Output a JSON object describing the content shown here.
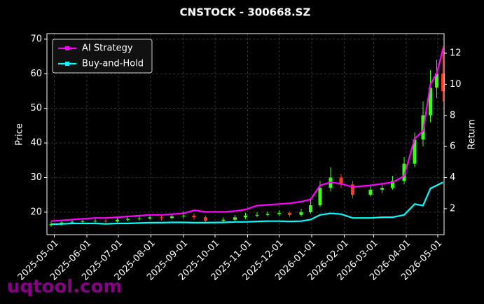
{
  "chart_data": {
    "type": "candlestick",
    "title": "CNSTOCK - 300668.SZ",
    "x": [
      "2025-04-28",
      "2025-05-08",
      "2025-05-18",
      "2025-05-28",
      "2025-06-09",
      "2025-06-19",
      "2025-06-30",
      "2025-07-10",
      "2025-07-21",
      "2025-07-31",
      "2025-08-11",
      "2025-08-21",
      "2025-09-01",
      "2025-09-11",
      "2025-09-22",
      "2025-10-09",
      "2025-10-20",
      "2025-10-30",
      "2025-11-10",
      "2025-11-20",
      "2025-12-01",
      "2025-12-11",
      "2025-12-22",
      "2025-12-31",
      "2026-01-09",
      "2026-01-19",
      "2026-01-29",
      "2026-02-09",
      "2026-02-26",
      "2026-03-09",
      "2026-03-19",
      "2026-03-30",
      "2026-04-09",
      "2026-04-17",
      "2026-04-24",
      "2026-04-30",
      "2026-05-06"
    ],
    "open": [
      16.2,
      16.5,
      17,
      17.2,
      17.4,
      17.5,
      17.3,
      17.8,
      18,
      18.2,
      18.5,
      18.3,
      18.8,
      19,
      18.5,
      17.5,
      17.8,
      18.5,
      19,
      19.2,
      19.5,
      19.8,
      19.2,
      20,
      22,
      27,
      30,
      28,
      25,
      26.5,
      27,
      29,
      34,
      41,
      48,
      56,
      60
    ],
    "high": [
      17.2,
      17.6,
      17.8,
      18,
      18.1,
      18,
      18.4,
      18.6,
      18.8,
      19.2,
      19,
      19.5,
      20.2,
      19.6,
      19,
      18.5,
      19.2,
      19.8,
      20,
      20.2,
      20.5,
      20.2,
      21,
      23.5,
      29,
      33,
      31,
      29,
      28,
      28.5,
      30.5,
      36,
      43,
      52,
      61,
      64,
      68
    ],
    "low": [
      15.8,
      16,
      16.5,
      16.8,
      17,
      16.8,
      17,
      17.4,
      17.6,
      17.8,
      17.6,
      18,
      18.2,
      17.8,
      17,
      17,
      17.4,
      18,
      18.5,
      18.8,
      19,
      18.6,
      18.8,
      19.5,
      21.5,
      26,
      27,
      24,
      24.5,
      25.5,
      26.5,
      28,
      33,
      39,
      46,
      53,
      52
    ],
    "close": [
      16.5,
      17,
      17.2,
      17.4,
      17.5,
      17.3,
      17.8,
      18,
      18.2,
      18.5,
      18.3,
      18.8,
      19,
      18.5,
      17.5,
      17.8,
      18.5,
      19,
      19.2,
      19.5,
      19.8,
      19.2,
      20,
      22,
      27,
      30,
      28,
      25,
      26.5,
      27,
      29,
      34,
      41,
      48,
      56,
      60,
      55
    ],
    "up_color": "#39ff14",
    "down_color": "#ff3b1f",
    "series": [
      {
        "name": "AI Strategy",
        "color": "#ff00ff",
        "axis": "y2",
        "values": [
          1.2,
          1.25,
          1.3,
          1.35,
          1.4,
          1.4,
          1.45,
          1.5,
          1.55,
          1.6,
          1.6,
          1.65,
          1.7,
          1.9,
          1.8,
          1.8,
          1.85,
          1.95,
          2.2,
          2.25,
          2.3,
          2.35,
          2.45,
          2.6,
          3.5,
          3.7,
          3.6,
          3.4,
          3.5,
          3.6,
          3.7,
          4.1,
          6.5,
          7.0,
          10.0,
          10.7,
          12.3
        ]
      },
      {
        "name": "Buy-and-Hold",
        "color": "#00ffff",
        "axis": "y2",
        "values": [
          1.0,
          1.02,
          1.05,
          1.05,
          1.05,
          1.02,
          1.05,
          1.05,
          1.08,
          1.1,
          1.1,
          1.12,
          1.12,
          1.1,
          1.1,
          1.12,
          1.15,
          1.15,
          1.18,
          1.2,
          1.2,
          1.18,
          1.2,
          1.3,
          1.6,
          1.7,
          1.65,
          1.4,
          1.4,
          1.45,
          1.45,
          1.6,
          2.3,
          2.2,
          3.3,
          3.5,
          3.7
        ]
      }
    ],
    "xlim": [
      "2025-04-24",
      "2026-05-07"
    ],
    "xticks": [
      "2025-05-01",
      "2025-06-01",
      "2025-07-01",
      "2025-08-01",
      "2025-09-01",
      "2025-10-01",
      "2025-11-01",
      "2025-12-01",
      "2026-01-01",
      "2026-02-01",
      "2026-03-01",
      "2026-04-01",
      "2026-05-01"
    ],
    "ylim": [
      13.5,
      71.6
    ],
    "yticks": [
      20,
      30,
      40,
      50,
      60,
      70
    ],
    "y2lim": [
      0.33,
      13.26
    ],
    "y2ticks": [
      2,
      4,
      6,
      8,
      10,
      12
    ],
    "ylabel": "Price",
    "y2label": "Return",
    "grid": true,
    "legend": "upper left"
  },
  "watermark": "uqtool.com"
}
